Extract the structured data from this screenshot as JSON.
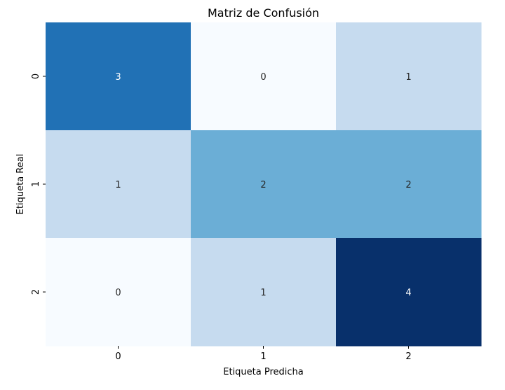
{
  "chart_data": {
    "type": "heatmap",
    "title": "Matriz de Confusión",
    "xlabel": "Etiqueta Predicha",
    "ylabel": "Etiqueta Real",
    "x_categories": [
      "0",
      "1",
      "2"
    ],
    "y_categories": [
      "0",
      "1",
      "2"
    ],
    "values": [
      [
        3,
        0,
        1
      ],
      [
        1,
        2,
        2
      ],
      [
        0,
        1,
        4
      ]
    ],
    "colormap": "Blues",
    "value_range": [
      0,
      4
    ],
    "colorbar": false,
    "grid": false
  }
}
